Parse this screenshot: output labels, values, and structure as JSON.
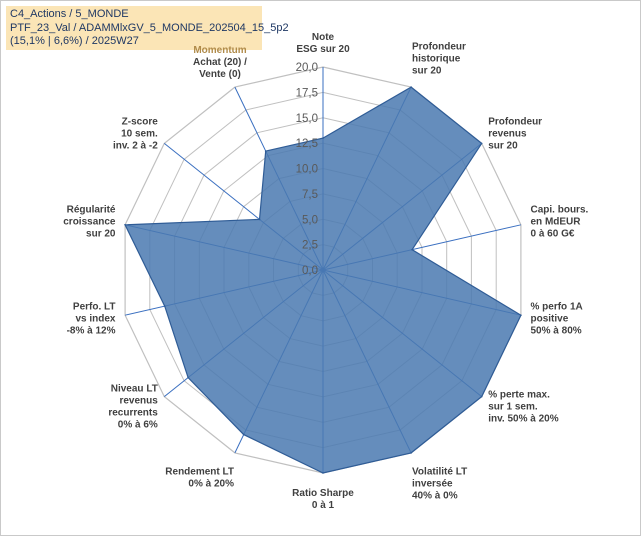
{
  "header": {
    "line1": "C4_Actions / 5_MONDE",
    "line2": "PTF_23_Val / ADAMMlxGV_5_MONDE_202504_15_5p2",
    "line3": "(15,1% | 6,6%) / 2025W27"
  },
  "chart_data": {
    "type": "radar",
    "rlim": [
      0,
      20
    ],
    "ticks": [
      "0,0",
      "2,5",
      "5,0",
      "7,5",
      "10,0",
      "12,5",
      "15,0",
      "17,5",
      "20,0"
    ],
    "categories": [
      [
        "Note",
        "ESG sur 20"
      ],
      [
        "Profondeur",
        "historique",
        "sur 20"
      ],
      [
        "Profondeur",
        "revenus",
        "sur 20"
      ],
      [
        "Capi. bours.",
        "en MdEUR",
        "0 à 60 G€"
      ],
      [
        "% perfo 1A",
        "positive",
        "50% à 80%"
      ],
      [
        "% perte max.",
        "sur 1 sem.",
        "inv. 50% à 20%"
      ],
      [
        "Volatilité LT",
        "inversée",
        "40% à 0%"
      ],
      [
        "Ratio Sharpe",
        "0 à 1"
      ],
      [
        "Rendement LT",
        "0% à 20%"
      ],
      [
        "Niveau LT",
        "revenus",
        "recurrents",
        "0% à 6%"
      ],
      [
        "Perfo. LT",
        "vs index",
        "-8% à 12%"
      ],
      [
        "Régularité",
        "croissance",
        "sur 20"
      ],
      [
        "Z-score",
        "10 sem.",
        "inv. 2 à -2"
      ],
      [
        "Momentum",
        "Achat (20) /",
        "Vente (0)"
      ]
    ],
    "values": [
      13.0,
      20.0,
      20.0,
      9.0,
      20.0,
      20.0,
      20.0,
      20.0,
      18.0,
      17.0,
      16.0,
      20.0,
      8.0,
      13.0
    ],
    "series": [
      {
        "values": [
          13.0,
          20.0,
          20.0,
          9.0,
          20.0,
          20.0,
          20.0,
          20.0,
          18.0,
          17.0,
          16.0,
          20.0,
          8.0,
          13.0
        ]
      }
    ],
    "grid": true,
    "legend": "none",
    "colors": {
      "fill": "#4a79b0",
      "stroke": "#2f5c96",
      "spoke": "#3a6fc0",
      "grid": "#c0c0c0",
      "momentum_label": "#b08b4a"
    }
  }
}
